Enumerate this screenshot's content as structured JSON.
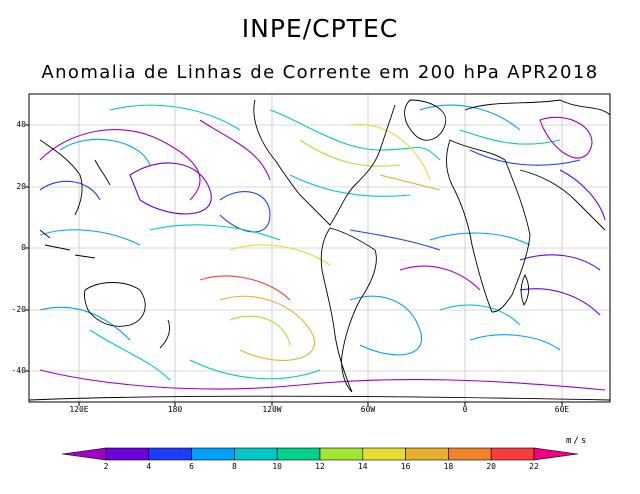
{
  "header": {
    "title": "INPE/CPTEC",
    "subtitle": "Anomalia de Linhas de Corrente em 200 hPa APR2018"
  },
  "axes": {
    "lat_labels": [
      "40",
      "20",
      "0",
      "-20",
      "-40"
    ],
    "lon_labels": [
      "120E",
      "180",
      "120W",
      "60W",
      "0",
      "60E"
    ]
  },
  "colorbar": {
    "units": "m/s",
    "ticks": [
      "2",
      "4",
      "6",
      "8",
      "10",
      "12",
      "14",
      "16",
      "18",
      "20",
      "22"
    ],
    "colors": [
      "#a000c8",
      "#6e00dc",
      "#1e3cff",
      "#00a0ff",
      "#00c8c8",
      "#00d28c",
      "#a0e632",
      "#e6dc32",
      "#e6af2d",
      "#f08228",
      "#fa3c3c",
      "#f00082"
    ]
  }
}
